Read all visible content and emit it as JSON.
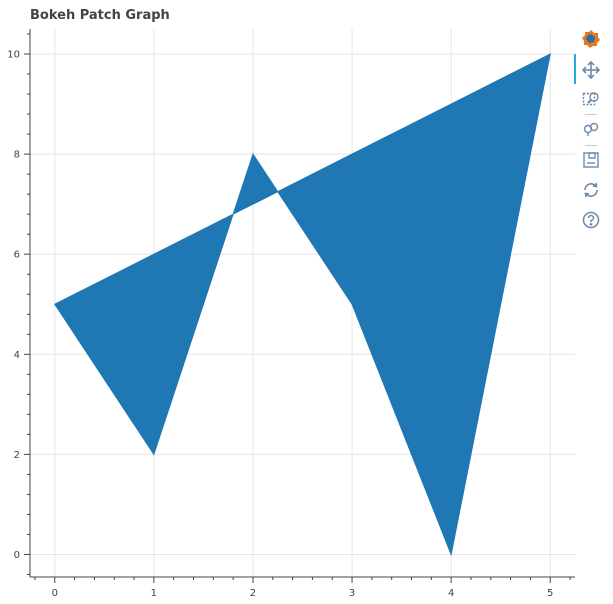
{
  "title": "Bokeh Patch Graph",
  "toolbar": {
    "tools": [
      "bokeh-logo",
      "pan",
      "box-zoom",
      "wheel-zoom",
      "save",
      "reset",
      "help"
    ]
  },
  "colors": {
    "fill": "#1f77b4",
    "grid": "#e5e5e5",
    "axis": "#444444"
  },
  "chart_data": {
    "type": "area",
    "title": "Bokeh Patch Graph",
    "xlabel": "",
    "ylabel": "",
    "x": [
      0,
      1,
      2,
      3,
      4,
      5
    ],
    "y": [
      5,
      2,
      8,
      5,
      0,
      10
    ],
    "xlim": [
      -0.25,
      5.25
    ],
    "ylim": [
      -0.45,
      10.5
    ],
    "xticks": [
      0,
      1,
      2,
      3,
      4,
      5
    ],
    "yticks": [
      0,
      2,
      4,
      6,
      8,
      10
    ],
    "grid": true,
    "legend": "none"
  }
}
